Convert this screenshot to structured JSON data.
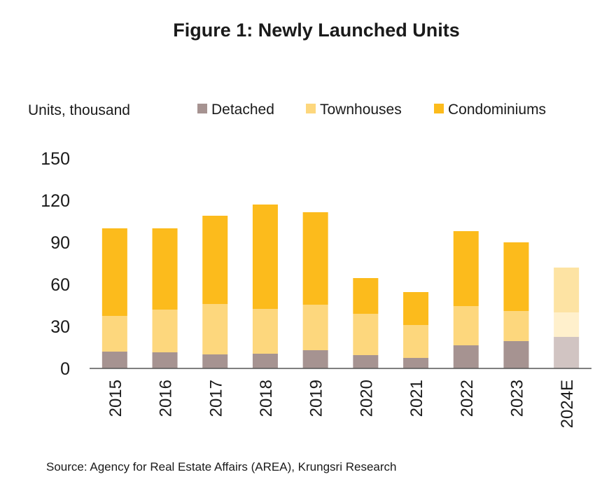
{
  "chart_data": {
    "type": "bar",
    "stacked": true,
    "title": "Figure 1: Newly Launched Units",
    "ylabel": "Units, thousand",
    "xlabel": "",
    "ylim": [
      0,
      150
    ],
    "yticks": [
      "0",
      "30",
      "60",
      "90",
      "120",
      "150"
    ],
    "categories": [
      "2015",
      "2016",
      "2017",
      "2018",
      "2019",
      "2020",
      "2021",
      "2022",
      "2023",
      "2024E"
    ],
    "series": [
      {
        "name": "Detached",
        "color": "#a69391",
        "color_estimate": "#d1c4c2",
        "values": [
          12,
          11.5,
          10,
          10.5,
          13,
          9.5,
          7.5,
          16.5,
          19.5,
          22.5
        ]
      },
      {
        "name": "Townhouses",
        "color": "#fdd77d",
        "color_estimate": "#fff0cc",
        "values": [
          25.5,
          30.5,
          36,
          32,
          32.5,
          29.5,
          23.5,
          28,
          21.5,
          17.5
        ]
      },
      {
        "name": "Condominiums",
        "color": "#fcbb1c",
        "color_estimate": "#fde3a3",
        "values": [
          62.5,
          58,
          63,
          74.5,
          66,
          25.5,
          23.5,
          53.5,
          49,
          32
        ]
      }
    ],
    "estimate_category": "2024E",
    "legend_position": "top",
    "grid": false,
    "source": "Source: Agency for Real Estate Affairs (AREA), Krungsri Research"
  }
}
